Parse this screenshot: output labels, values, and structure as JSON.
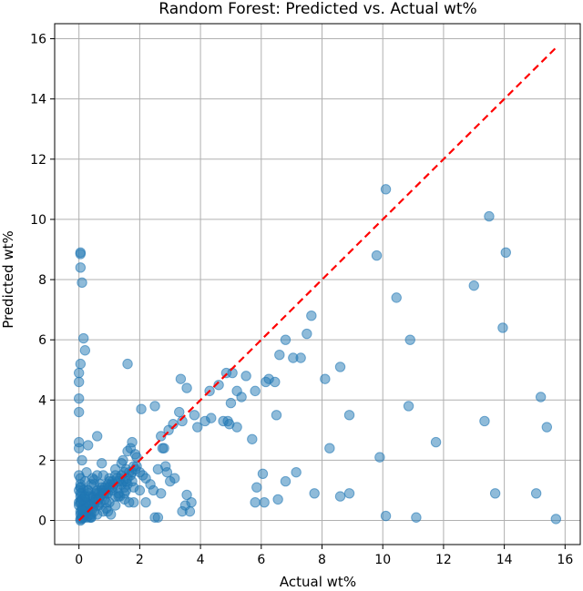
{
  "chart_data": {
    "type": "scatter",
    "title": "Random Forest: Predicted vs. Actual wt%",
    "xlabel": "Actual wt%",
    "ylabel": "Predicted wt%",
    "xlim": [
      -0.8,
      16.5
    ],
    "ylim": [
      -0.8,
      16.5
    ],
    "xticks": [
      0,
      2,
      4,
      6,
      8,
      10,
      12,
      14,
      16
    ],
    "yticks": [
      0,
      2,
      4,
      6,
      8,
      10,
      12,
      14,
      16
    ],
    "grid": true,
    "colors": {
      "points": "#1f77b4",
      "reference_line": "#ff0000"
    },
    "reference_line": {
      "style": "dashed",
      "x": [
        0,
        15.7
      ],
      "y": [
        0,
        15.7
      ]
    },
    "x": [
      0.05,
      0.05,
      0.05,
      0.1,
      0.15,
      0.2,
      0.0,
      0.0,
      0.0,
      0.0,
      0.0,
      0.0,
      0.05,
      0.1,
      0.0,
      0.05,
      0.3,
      0.2,
      0.6,
      0.75,
      1.6,
      1.6,
      1.45,
      1.7,
      1.85,
      1.5,
      1.75,
      2.05,
      2.5,
      2.7,
      2.75,
      2.95,
      3.1,
      3.3,
      3.55,
      3.35,
      3.4,
      3.8,
      3.9,
      4.15,
      4.3,
      4.35,
      4.6,
      4.85,
      5.05,
      5.0,
      5.2,
      5.35,
      5.5,
      4.75,
      4.9,
      4.95,
      5.2,
      5.7,
      5.8,
      6.15,
      6.25,
      6.45,
      6.5,
      6.6,
      6.8,
      7.05,
      7.3,
      7.5,
      7.65,
      8.1,
      8.6,
      8.9,
      10.1,
      9.8,
      10.45,
      10.9,
      13.5,
      14.05,
      13.95,
      13.0,
      10.85,
      15.2,
      15.4,
      13.35,
      11.75,
      9.9,
      8.25,
      8.9,
      7.75,
      7.15,
      6.8,
      6.55,
      6.1,
      5.8,
      5.85,
      6.05,
      3.7,
      3.65,
      3.55,
      3.15,
      2.85,
      2.8,
      2.6,
      13.7,
      15.05,
      15.7,
      11.1,
      10.1,
      8.6,
      3.4,
      3.5,
      3.0,
      2.9,
      2.5,
      2.6,
      2.35,
      2.2,
      2.0,
      1.8,
      1.5,
      1.3,
      1.1,
      0.9,
      0.7,
      0.5,
      0.3,
      0.25,
      0.15,
      0.1,
      0.1,
      0.05,
      0.05,
      0.3,
      0.5,
      0.8,
      1.2,
      1.0,
      0.9,
      0.6,
      0.4,
      0.35,
      0.2,
      0.05,
      1.4,
      1.6,
      1.3,
      0.8,
      0.7,
      0.45,
      0.25,
      1.9,
      1.75,
      1.0,
      0.55,
      0.95,
      2.0,
      2.45,
      2.7,
      2.2,
      1.2,
      1.55,
      0.85,
      0.6,
      0.25,
      0.15,
      0.05,
      0.05,
      0.4,
      0.7,
      1.05,
      1.35,
      1.65,
      2.1,
      0.0,
      0.0,
      0.1,
      0.2,
      0.35,
      0.55,
      0.75,
      0.45,
      0.65,
      0.85,
      1.0,
      0.3,
      0.45,
      0.6,
      0.75,
      0.9,
      1.05,
      1.2,
      1.35,
      1.5,
      1.65,
      1.8,
      0.2,
      0.35,
      0.5,
      0.65,
      0.8,
      0.95,
      1.1,
      1.25,
      1.4,
      1.55,
      1.7,
      1.85,
      0.1,
      0.25,
      0.4,
      0.55,
      0.7,
      0.85,
      1.0,
      1.15,
      1.3,
      1.45,
      1.6,
      1.75,
      1.9,
      0.05,
      0.2,
      0.35,
      0.5,
      0.65,
      0.8,
      0.95,
      1.1,
      1.25,
      1.4,
      1.55,
      0.15,
      0.3,
      0.45,
      0.6,
      0.9,
      1.2,
      1.5,
      1.8,
      0.05,
      0.05,
      0.1,
      0.15,
      0.2,
      0.05,
      0.1,
      0.15,
      0.2,
      0.25,
      0.3,
      0.4,
      0.5,
      0.1,
      0.05,
      0.1,
      0.15,
      0.0,
      0.05,
      0.1,
      0.2,
      0.3,
      0.4,
      0.5,
      0.6
    ],
    "y": [
      8.85,
      8.9,
      8.4,
      7.9,
      6.05,
      5.65,
      4.9,
      4.05,
      3.6,
      4.6,
      2.6,
      2.4,
      5.2,
      2.0,
      1.5,
      1.2,
      2.5,
      1.3,
      2.8,
      1.9,
      5.2,
      2.3,
      2.0,
      2.4,
      2.2,
      1.1,
      2.6,
      3.7,
      3.8,
      2.8,
      2.4,
      3.0,
      3.2,
      3.6,
      4.4,
      4.7,
      3.3,
      3.5,
      3.1,
      3.3,
      4.3,
      3.4,
      4.5,
      4.9,
      4.9,
      3.9,
      4.3,
      4.1,
      4.8,
      3.3,
      3.3,
      3.2,
      3.1,
      2.7,
      4.3,
      4.6,
      4.7,
      4.6,
      3.5,
      5.5,
      6.0,
      5.4,
      5.4,
      6.2,
      6.8,
      4.7,
      5.1,
      3.5,
      11.0,
      8.8,
      7.4,
      6.0,
      10.1,
      8.9,
      6.4,
      7.8,
      3.8,
      4.1,
      3.1,
      3.3,
      2.6,
      2.1,
      2.4,
      0.9,
      0.9,
      1.6,
      1.3,
      0.7,
      0.6,
      0.6,
      1.1,
      1.55,
      0.6,
      0.3,
      0.85,
      1.4,
      1.8,
      2.4,
      1.7,
      0.9,
      0.9,
      0.05,
      0.1,
      0.15,
      0.8,
      0.3,
      0.5,
      1.3,
      1.6,
      0.1,
      0.1,
      1.2,
      1.4,
      1.0,
      0.6,
      0.7,
      0.9,
      1.3,
      1.0,
      0.8,
      0.5,
      0.3,
      0.6,
      0.2,
      0.1,
      0.4,
      0.05,
      0.8,
      1.0,
      1.2,
      1.5,
      1.7,
      0.6,
      0.4,
      0.2,
      0.1,
      0.5,
      0.7,
      1.1,
      1.9,
      1.2,
      0.8,
      0.3,
      1.2,
      1.4,
      1.6,
      2.1,
      1.3,
      1.4,
      0.9,
      0.3,
      1.6,
      1.0,
      0.9,
      0.6,
      0.5,
      1.0,
      0.7,
      0.9,
      0.3,
      1.0,
      0.3,
      1.4,
      0.1,
      0.6,
      0.2,
      0.8,
      0.6,
      1.5,
      1.0,
      0.5,
      0.9,
      0.4,
      0.1,
      0.7,
      1.0,
      0.8,
      0.5,
      1.1,
      1.3,
      0.9,
      0.75,
      1.0,
      1.1,
      0.9,
      1.2,
      1.5,
      1.4,
      1.6,
      1.6,
      1.8,
      0.6,
      0.8,
      0.6,
      0.9,
      1.0,
      1.2,
      1.1,
      1.4,
      1.5,
      1.7,
      1.5,
      1.7,
      0.3,
      0.4,
      0.5,
      0.7,
      0.8,
      0.9,
      1.1,
      1.2,
      1.3,
      1.3,
      1.4,
      1.6,
      1.8,
      0.6,
      0.7,
      0.5,
      0.6,
      0.7,
      0.9,
      0.9,
      1.0,
      1.1,
      1.2,
      1.3,
      0.2,
      0.3,
      0.4,
      0.5,
      0.6,
      0.8,
      0.9,
      1.1,
      1.1,
      0.9,
      0.7,
      0.5,
      0.3,
      0.2,
      0.15,
      0.25,
      0.2,
      0.1,
      0.15,
      0.2,
      0.3,
      0.35,
      0.0,
      0.05,
      0.1,
      0.6,
      0.65,
      0.7,
      0.8,
      1.0,
      1.2,
      1.35,
      1.5
    ]
  }
}
